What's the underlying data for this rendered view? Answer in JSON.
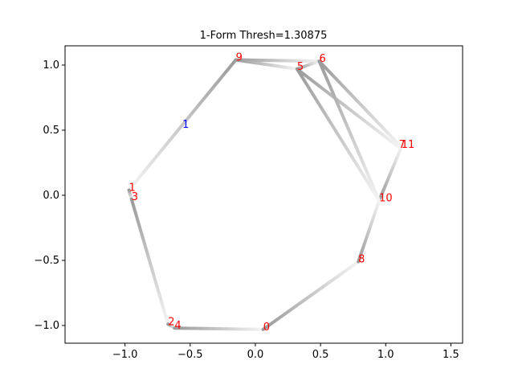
{
  "chart_data": {
    "type": "graph",
    "title": "1-Form Thresh=1.30875",
    "xlim": [
      -1.46,
      1.59
    ],
    "ylim": [
      -1.136,
      1.148
    ],
    "xticks": [
      {
        "value": -1,
        "label": "−1.0"
      },
      {
        "value": -0.5,
        "label": "−0.5"
      },
      {
        "value": 0,
        "label": "0.0"
      },
      {
        "value": 0.5,
        "label": "0.5"
      },
      {
        "value": 1,
        "label": "1.0"
      },
      {
        "value": 1.5,
        "label": "1.5"
      }
    ],
    "yticks": [
      {
        "value": -1,
        "label": "−1.0"
      },
      {
        "value": -0.5,
        "label": "−0.5"
      },
      {
        "value": 0,
        "label": "0.0"
      },
      {
        "value": 0.5,
        "label": "0.5"
      },
      {
        "value": 1,
        "label": "1.0"
      }
    ],
    "node_color": "red",
    "nodes": [
      {
        "label": "0",
        "x": 0.06,
        "y": -1.03
      },
      {
        "label": "1",
        "x": -0.97,
        "y": 0.04
      },
      {
        "label": "2",
        "x": -0.67,
        "y": -0.99
      },
      {
        "label": "3",
        "x": -0.95,
        "y": -0.03
      },
      {
        "label": "4",
        "x": -0.62,
        "y": -1.02
      },
      {
        "label": "5",
        "x": 0.32,
        "y": 0.97
      },
      {
        "label": "6",
        "x": 0.49,
        "y": 1.03
      },
      {
        "label": "7",
        "x": 1.1,
        "y": 0.37
      },
      {
        "label": "8",
        "x": 0.79,
        "y": -0.51
      },
      {
        "label": "9",
        "x": -0.15,
        "y": 1.04
      },
      {
        "label": "10",
        "x": 0.95,
        "y": -0.04
      },
      {
        "label": "11",
        "x": 1.12,
        "y": 0.37
      }
    ],
    "edges": [
      [
        9,
        1
      ],
      [
        1,
        3
      ],
      [
        3,
        2
      ],
      [
        2,
        4
      ],
      [
        4,
        0
      ],
      [
        0,
        8
      ],
      [
        8,
        10
      ],
      [
        10,
        11
      ],
      [
        9,
        6
      ],
      [
        9,
        5
      ],
      [
        5,
        6
      ],
      [
        5,
        7
      ],
      [
        6,
        11
      ],
      [
        5,
        10
      ],
      [
        6,
        10
      ]
    ],
    "annotation": {
      "text": "1",
      "x": -0.56,
      "y": 0.55,
      "color": "blue"
    }
  }
}
